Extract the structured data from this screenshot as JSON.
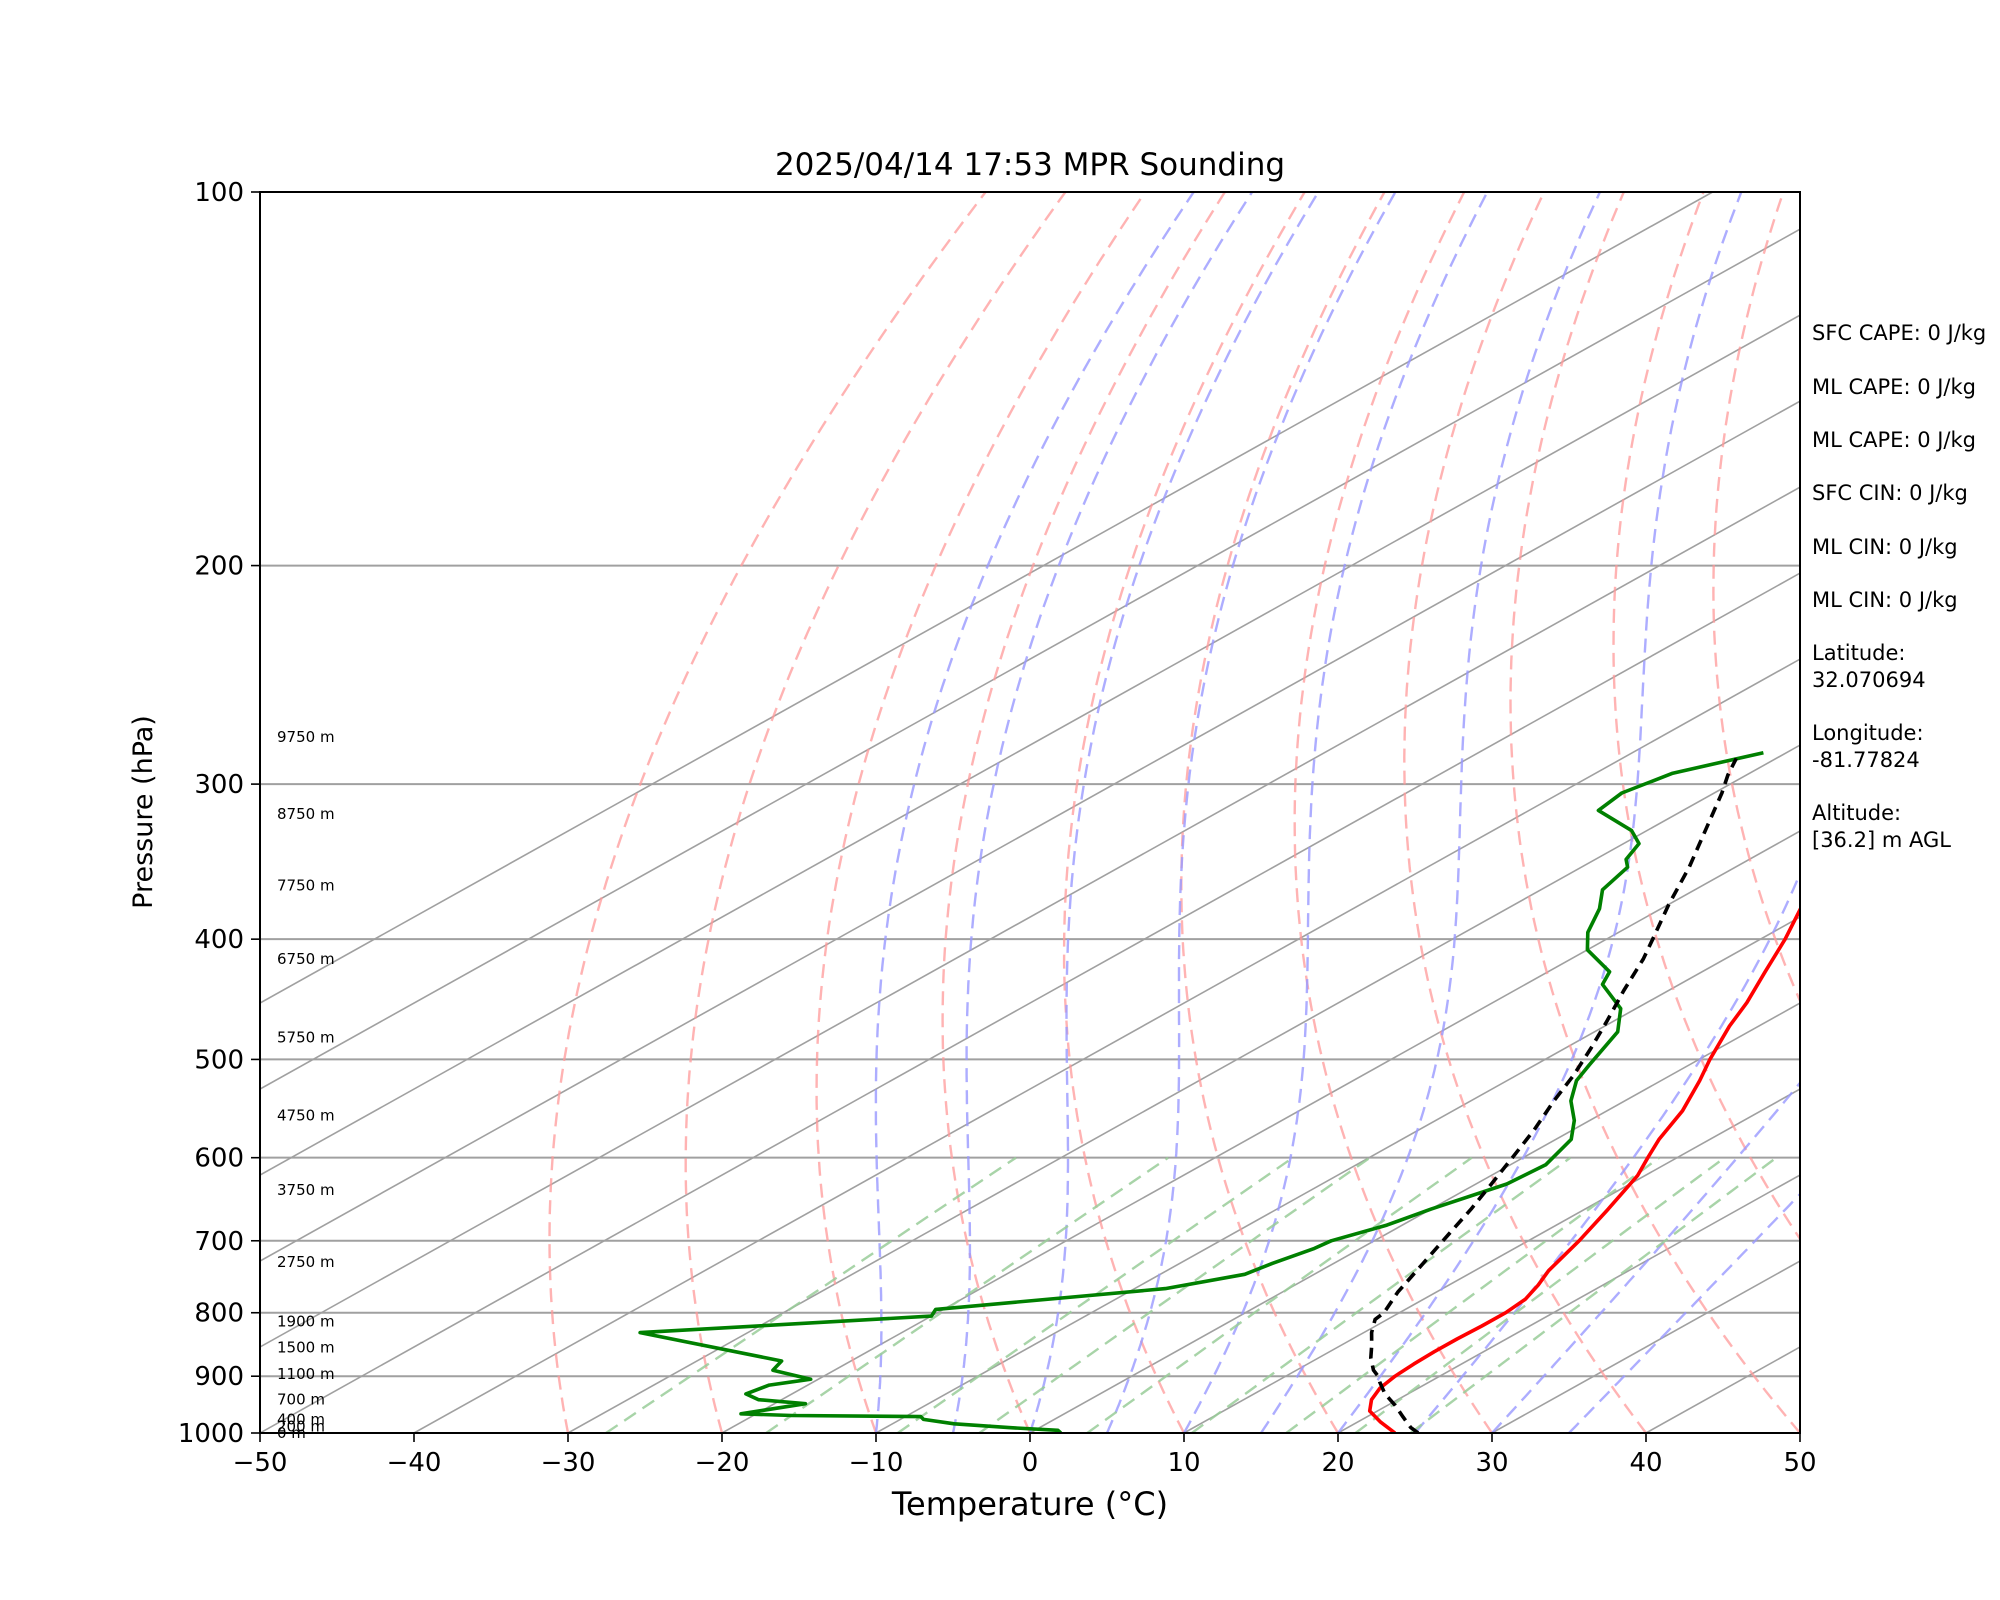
{
  "chart_data": {
    "type": "line",
    "title": "2025/04/14 17:53 MPR Sounding",
    "xlabel": "Temperature (°C)",
    "ylabel": "Pressure (hPa)",
    "xlim": [
      -50,
      50
    ],
    "ylim": [
      1000,
      100
    ],
    "y_scale": "log",
    "grid": true,
    "x_ticks": [
      -50,
      -40,
      -30,
      -20,
      -10,
      0,
      10,
      20,
      30,
      40,
      50
    ],
    "x_tick_labels": [
      "−50",
      "−40",
      "−30",
      "−20",
      "−10",
      "0",
      "10",
      "20",
      "30",
      "40",
      "50"
    ],
    "y_ticks": [
      100,
      200,
      300,
      400,
      500,
      600,
      700,
      800,
      900,
      1000
    ],
    "y_tick_labels": [
      "100",
      "200",
      "300",
      "400",
      "500",
      "600",
      "700",
      "800",
      "900",
      "1000"
    ],
    "colors": {
      "temperature": "#ff0000",
      "dewpoint": "#008000",
      "parcel": "#000000",
      "isotherm": "#a0a0a0",
      "dry_adiabat": "#ff9999",
      "moist_adiabat": "#9999ff",
      "mixing_ratio": "#99cc99"
    },
    "series": [
      {
        "key": "temperature",
        "points": [
          [
            23.7,
            1000
          ],
          [
            21.5,
            980
          ],
          [
            19.5,
            960
          ],
          [
            18.3,
            940
          ],
          [
            17.5,
            920
          ],
          [
            17.1,
            900
          ],
          [
            16.9,
            880
          ],
          [
            16.8,
            860
          ],
          [
            16.8,
            840
          ],
          [
            16.9,
            820
          ],
          [
            16.9,
            800
          ],
          [
            16.6,
            780
          ],
          [
            15.8,
            760
          ],
          [
            14.8,
            740
          ],
          [
            13.3,
            700
          ],
          [
            11.5,
            660
          ],
          [
            9.5,
            620
          ],
          [
            8.1,
            600
          ],
          [
            6.7,
            580
          ],
          [
            4.9,
            550
          ],
          [
            2.5,
            520
          ],
          [
            0.7,
            500
          ],
          [
            -1.9,
            470
          ],
          [
            -3.5,
            450
          ],
          [
            -5.9,
            425
          ],
          [
            -8.4,
            400
          ],
          [
            -11.3,
            375
          ],
          [
            -14.7,
            350
          ],
          [
            -18.4,
            325
          ],
          [
            -21.6,
            305
          ],
          [
            -23.7,
            292
          ],
          [
            -25.4,
            282
          ]
        ]
      },
      {
        "key": "dewpoint",
        "points": [
          [
            2.0,
            1000
          ],
          [
            1.5,
            995
          ],
          [
            -2.0,
            990
          ],
          [
            -6.0,
            983
          ],
          [
            -8.5,
            975
          ],
          [
            -9.0,
            970
          ],
          [
            -17.5,
            968
          ],
          [
            -21.0,
            965
          ],
          [
            -18.0,
            947
          ],
          [
            -21.5,
            940
          ],
          [
            -23.0,
            930
          ],
          [
            -22.5,
            915
          ],
          [
            -20.5,
            905
          ],
          [
            -24.0,
            890
          ],
          [
            -24.5,
            875
          ],
          [
            -37.0,
            830
          ],
          [
            -20.0,
            805
          ],
          [
            -20.5,
            795
          ],
          [
            -8.0,
            765
          ],
          [
            -4.5,
            745
          ],
          [
            -4.0,
            730
          ],
          [
            -3.0,
            710
          ],
          [
            -2.8,
            700
          ],
          [
            -1.0,
            680
          ],
          [
            0.0,
            660
          ],
          [
            2.0,
            630
          ],
          [
            2.3,
            608
          ],
          [
            1.0,
            580
          ],
          [
            -1.0,
            560
          ],
          [
            -3.5,
            540
          ],
          [
            -5.5,
            520
          ],
          [
            -6.5,
            505
          ],
          [
            -8.5,
            475
          ],
          [
            -11.0,
            455
          ],
          [
            -15.0,
            435
          ],
          [
            -16.0,
            425
          ],
          [
            -20.0,
            408
          ],
          [
            -22.0,
            395
          ],
          [
            -24.0,
            378
          ],
          [
            -26.0,
            365
          ],
          [
            -27.0,
            350
          ],
          [
            -28.0,
            345
          ],
          [
            -29.0,
            335
          ],
          [
            -31.0,
            327
          ],
          [
            -35.5,
            315
          ],
          [
            -36.0,
            305
          ],
          [
            -35.0,
            294
          ],
          [
            -31.5,
            283
          ]
        ]
      },
      {
        "key": "parcel",
        "points": [
          [
            25.2,
            1000
          ],
          [
            24.1,
            990
          ],
          [
            22.3,
            970
          ],
          [
            20.5,
            950
          ],
          [
            18.5,
            930
          ],
          [
            16.8,
            910
          ],
          [
            16.0,
            900
          ],
          [
            15.0,
            890
          ],
          [
            13.4,
            870
          ],
          [
            12.0,
            850
          ],
          [
            10.5,
            830
          ],
          [
            9.2,
            810
          ],
          [
            9.0,
            800
          ],
          [
            7.5,
            770
          ],
          [
            5.8,
            730
          ],
          [
            4.0,
            690
          ],
          [
            2.6,
            660
          ],
          [
            1.0,
            630
          ],
          [
            -0.7,
            600
          ],
          [
            -2.5,
            570
          ],
          [
            -4.6,
            540
          ],
          [
            -6.3,
            515
          ],
          [
            -8.3,
            490
          ],
          [
            -10.5,
            465
          ],
          [
            -12.9,
            440
          ],
          [
            -15.3,
            415
          ],
          [
            -17.0,
            400
          ],
          [
            -20.0,
            375
          ],
          [
            -23.0,
            350
          ],
          [
            -26.5,
            325
          ],
          [
            -29.5,
            305
          ],
          [
            -31.2,
            295
          ],
          [
            -32.6,
            286
          ]
        ]
      }
    ],
    "background_lines": {
      "isotherms_c": [
        -100,
        -90,
        -80,
        -70,
        -60,
        -50,
        -40,
        -30,
        -20,
        -10,
        0,
        10,
        20,
        30,
        40,
        50
      ],
      "dry_adiabats_c": [
        -30,
        -20,
        -10,
        0,
        10,
        20,
        30,
        40,
        50,
        60,
        70,
        80,
        90,
        100
      ],
      "moist_adiabats_c": [
        -10,
        -5,
        0,
        5,
        10,
        15,
        20,
        25,
        30,
        35
      ],
      "mixing_ratio_gkg": [
        0.4,
        1,
        2,
        3,
        5,
        8,
        12,
        16,
        20
      ]
    },
    "height_labels": [
      {
        "text": "9750 m",
        "p": 275
      },
      {
        "text": "8750 m",
        "p": 317
      },
      {
        "text": "7750 m",
        "p": 362
      },
      {
        "text": "6750 m",
        "p": 415
      },
      {
        "text": "5750 m",
        "p": 480
      },
      {
        "text": "4750 m",
        "p": 555
      },
      {
        "text": "3750 m",
        "p": 637
      },
      {
        "text": "2750 m",
        "p": 728
      },
      {
        "text": "1900 m",
        "p": 813
      },
      {
        "text": "1500 m",
        "p": 853
      },
      {
        "text": "1100 m",
        "p": 896
      },
      {
        "text": "700 m",
        "p": 940
      },
      {
        "text": "400 m",
        "p": 975
      },
      {
        "text": "200 m",
        "p": 988
      },
      {
        "text": "0 m",
        "p": 1000
      }
    ],
    "annotations": [
      "SFC CAPE: 0 J/kg",
      "ML CAPE: 0 J/kg",
      "ML CAPE: 0 J/kg",
      "SFC CIN: 0 J/kg",
      "ML CIN: 0 J/kg",
      "ML CIN: 0 J/kg",
      "Latitude:\n32.070694",
      "Longitude:\n-81.77824",
      "Altitude:\n[36.2] m AGL"
    ]
  }
}
